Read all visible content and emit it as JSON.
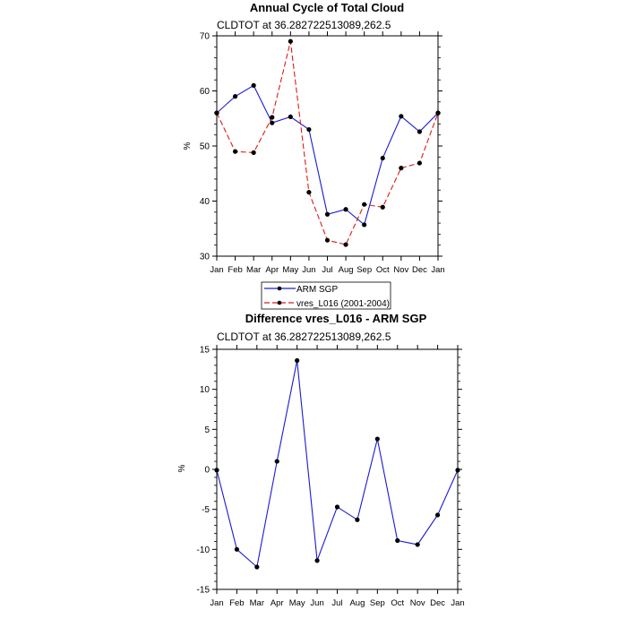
{
  "colors": {
    "arm": "#1a1ad2",
    "vres": "#e01818",
    "diff": "#1a1ad2",
    "marker": "#000000",
    "axis": "#000000"
  },
  "chart_data": [
    {
      "type": "line",
      "title": "Annual Cycle of Total Cloud",
      "subtitle": "CLDTOT at 36.282722513089,262.5",
      "ylabel": "%",
      "ylim": [
        30,
        70
      ],
      "yticks": [
        30,
        40,
        50,
        60,
        70
      ],
      "categories": [
        "Jan",
        "Feb",
        "Mar",
        "Apr",
        "May",
        "Jun",
        "Jul",
        "Aug",
        "Sep",
        "Oct",
        "Nov",
        "Dec",
        "Jan"
      ],
      "series": [
        {
          "name": "ARM SGP",
          "style": "solid",
          "values": [
            56.0,
            59.0,
            61.0,
            54.2,
            55.3,
            53.0,
            37.6,
            38.5,
            35.7,
            47.8,
            55.4,
            52.6,
            56.0
          ]
        },
        {
          "name": "vres_L016 (2001-2004)",
          "style": "dashed",
          "values": [
            56.0,
            49.0,
            48.8,
            55.2,
            69.0,
            41.6,
            32.9,
            32.1,
            39.4,
            38.9,
            46.0,
            46.9,
            56.0
          ]
        }
      ],
      "legend": "bottom"
    },
    {
      "type": "line",
      "title": "Difference vres_L016 - ARM SGP",
      "subtitle": "CLDTOT at 36.282722513089,262.5",
      "ylabel": "%",
      "ylim": [
        -15,
        15
      ],
      "yticks": [
        -15,
        -10,
        -5,
        0,
        5,
        10,
        15
      ],
      "categories": [
        "Jan",
        "Feb",
        "Mar",
        "Apr",
        "May",
        "Jun",
        "Jul",
        "Aug",
        "Sep",
        "Oct",
        "Nov",
        "Dec",
        "Jan"
      ],
      "series": [
        {
          "values": [
            -0.1,
            -10.0,
            -12.2,
            1.0,
            13.6,
            -11.4,
            -4.7,
            -6.3,
            3.8,
            -8.9,
            -9.4,
            -5.7,
            -0.1
          ]
        }
      ]
    }
  ]
}
